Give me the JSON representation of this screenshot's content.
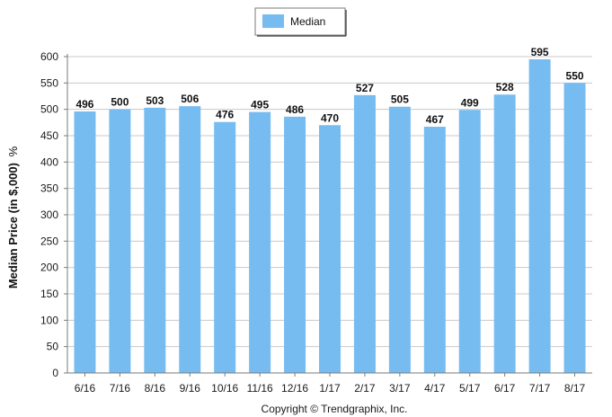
{
  "chart_data": {
    "type": "bar",
    "categories": [
      "6/16",
      "7/16",
      "8/16",
      "9/16",
      "10/16",
      "11/16",
      "12/16",
      "1/17",
      "2/17",
      "3/17",
      "4/17",
      "5/17",
      "6/17",
      "7/17",
      "8/17"
    ],
    "series": [
      {
        "name": "Median",
        "values": [
          496,
          500,
          503,
          506,
          476,
          495,
          486,
          470,
          527,
          505,
          467,
          499,
          528,
          595,
          550
        ],
        "color": "#77bcf0"
      }
    ],
    "ylim": [
      0,
      600
    ],
    "yticks": [
      0,
      50,
      100,
      150,
      200,
      250,
      300,
      350,
      400,
      450,
      500,
      550,
      600
    ],
    "ylabel": "Median Price (in $,000)",
    "ylabel_suffix": "%",
    "xlabel": "",
    "grid": true,
    "legend": "top-center",
    "data_labels": true
  },
  "footer": {
    "copyright": "Copyright © Trendgraphix, Inc."
  },
  "colors": {
    "bar": "#77bcf0",
    "grid": "#c8c8c8",
    "axis": "#7a7a7a"
  }
}
